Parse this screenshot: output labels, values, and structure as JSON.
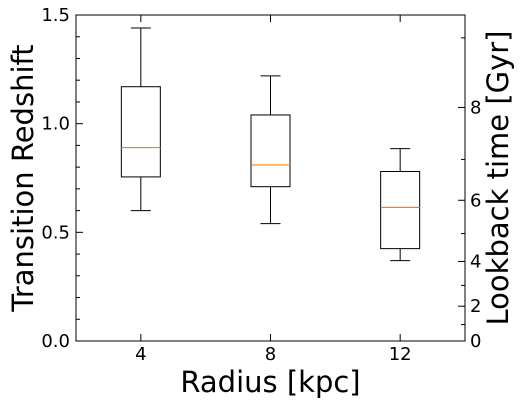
{
  "chart_data": {
    "type": "box",
    "xlabel": "Radius [kpc]",
    "ylabel": "Transition Redshift",
    "y2label": "Lookback time [Gyr]",
    "xlim": [
      2,
      14
    ],
    "ylim": [
      0,
      1.5
    ],
    "x_ticks": [
      4,
      8,
      12
    ],
    "x_tick_labels": [
      "4",
      "8",
      "12"
    ],
    "y_ticks": [
      0.0,
      0.5,
      1.0,
      1.5
    ],
    "y_tick_labels": [
      "0.0",
      "0.5",
      "1.0",
      "1.5"
    ],
    "y2_ticks_lookback_gyr": [
      0,
      2,
      4,
      6,
      8
    ],
    "y2_tick_labels": [
      "0",
      "2",
      "4",
      "6",
      "8"
    ],
    "y2_minor_ticks_lookback_gyr": [
      1,
      3,
      5,
      7,
      9,
      10
    ],
    "grid": false,
    "box_color": "#000000",
    "median_color": "#ff7f0e",
    "boxes": [
      {
        "x": 4,
        "whisker_low": 0.6,
        "q1": 0.755,
        "median": 0.89,
        "q3": 1.17,
        "whisker_high": 1.44
      },
      {
        "x": 8,
        "whisker_low": 0.54,
        "q1": 0.71,
        "median": 0.81,
        "q3": 1.04,
        "whisker_high": 1.22
      },
      {
        "x": 12,
        "whisker_low": 0.37,
        "q1": 0.425,
        "median": 0.615,
        "q3": 0.78,
        "whisker_high": 0.885
      }
    ]
  }
}
